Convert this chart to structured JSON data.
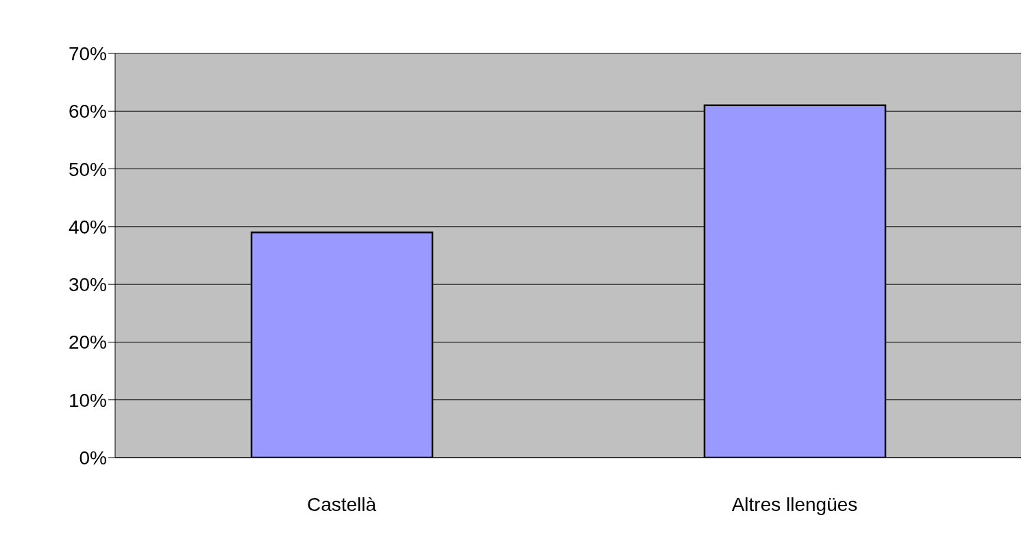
{
  "chart_data": {
    "type": "bar",
    "categories": [
      "Castellà",
      "Altres llengües"
    ],
    "values": [
      39,
      61
    ],
    "color": "#9999ff",
    "ylim": [
      0,
      70
    ],
    "yticks": [
      {
        "value": 0,
        "label": "0%"
      },
      {
        "value": 10,
        "label": "10%"
      },
      {
        "value": 20,
        "label": "20%"
      },
      {
        "value": 30,
        "label": "30%"
      },
      {
        "value": 40,
        "label": "40%"
      },
      {
        "value": 50,
        "label": "50%"
      },
      {
        "value": 60,
        "label": "60%"
      },
      {
        "value": 70,
        "label": "70%"
      }
    ],
    "grid": "y",
    "legend": false
  }
}
